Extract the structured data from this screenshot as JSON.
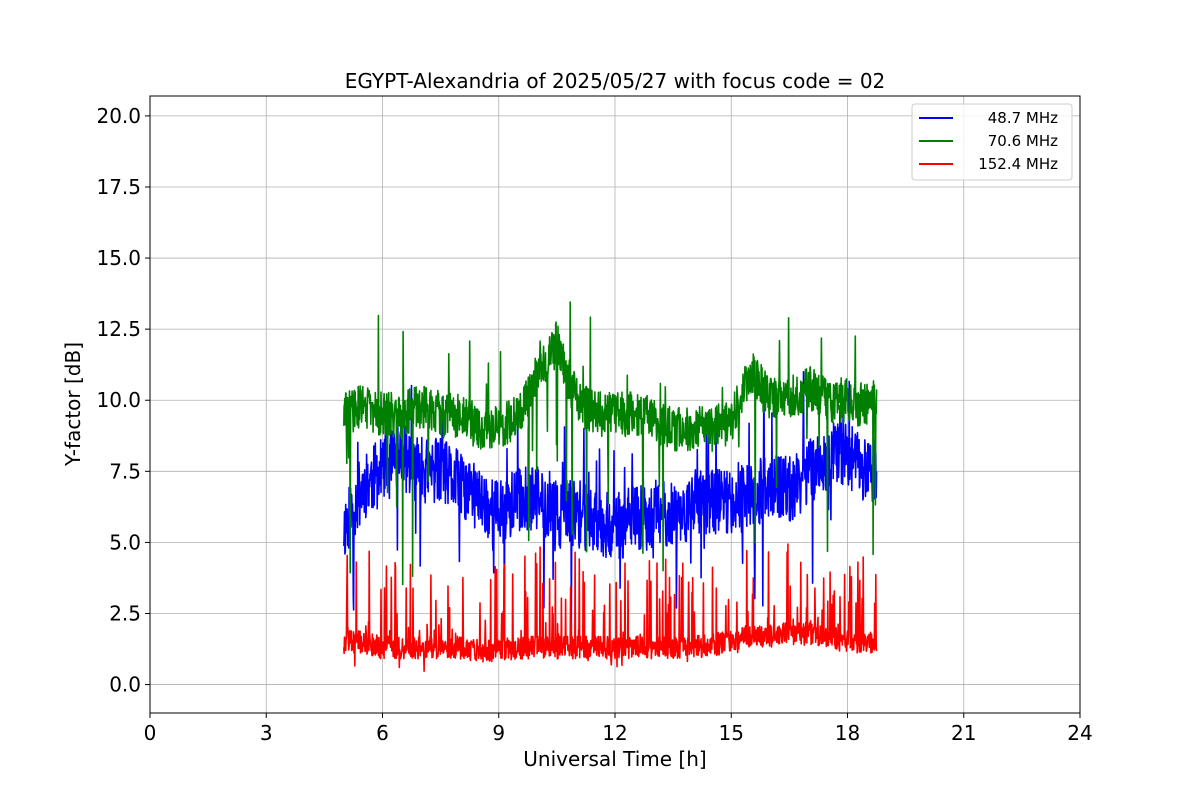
{
  "chart_data": {
    "type": "line",
    "title": "EGYPT-Alexandria of 2025/05/27 with focus code = 02",
    "xlabel": "Universal Time [h]",
    "ylabel": "Y-factor [dB]",
    "xlim": [
      0,
      24
    ],
    "ylim": [
      -1.0,
      20.7
    ],
    "x_ticks": [
      0,
      3,
      6,
      9,
      12,
      15,
      18,
      21,
      24
    ],
    "x_tick_labels": [
      "0",
      "3",
      "6",
      "9",
      "12",
      "15",
      "18",
      "21",
      "24"
    ],
    "y_ticks": [
      0,
      2.5,
      5,
      7.5,
      10,
      12.5,
      15,
      17.5,
      20
    ],
    "y_tick_labels": [
      "0.0",
      "2.5",
      "5.0",
      "7.5",
      "10.0",
      "12.5",
      "15.0",
      "17.5",
      "20.0"
    ],
    "grid": true,
    "legend_position": "top-right",
    "series": [
      {
        "name": "48.7 MHz",
        "color": "#0000ff",
        "x": [
          5.0,
          5.5,
          6.0,
          6.5,
          7.0,
          7.5,
          8.0,
          8.5,
          9.0,
          9.5,
          10.0,
          10.5,
          11.0,
          11.5,
          12.0,
          12.5,
          13.0,
          13.5,
          14.0,
          14.5,
          15.0,
          15.5,
          16.0,
          16.5,
          17.0,
          17.5,
          18.0,
          18.5,
          18.75
        ],
        "y": [
          5.5,
          7.0,
          7.5,
          8.0,
          7.5,
          7.5,
          7.0,
          6.5,
          6.0,
          6.5,
          6.5,
          6.0,
          6.0,
          5.8,
          5.5,
          5.8,
          6.0,
          6.0,
          6.2,
          6.5,
          6.5,
          6.5,
          7.0,
          6.8,
          7.5,
          8.0,
          8.0,
          7.5,
          7.5
        ]
      },
      {
        "name": "70.6 MHz",
        "color": "#008000",
        "x": [
          5.0,
          5.5,
          6.0,
          6.5,
          7.0,
          7.5,
          8.0,
          8.5,
          9.0,
          9.5,
          10.0,
          10.5,
          11.0,
          11.5,
          12.0,
          12.5,
          13.0,
          13.5,
          14.0,
          14.5,
          15.0,
          15.5,
          16.0,
          16.5,
          17.0,
          17.5,
          18.0,
          18.5,
          18.75
        ],
        "y": [
          9.5,
          9.8,
          9.5,
          9.5,
          9.8,
          9.5,
          9.5,
          9.0,
          9.0,
          9.5,
          11.0,
          12.0,
          10.0,
          9.5,
          9.5,
          9.5,
          9.3,
          9.0,
          9.0,
          9.0,
          9.2,
          11.0,
          10.0,
          10.0,
          10.5,
          10.0,
          10.0,
          9.8,
          10.0
        ]
      },
      {
        "name": "152.4 MHz",
        "color": "#ff0000",
        "x": [
          5.0,
          5.5,
          6.0,
          6.5,
          7.0,
          7.5,
          8.0,
          8.5,
          9.0,
          9.5,
          10.0,
          10.5,
          11.0,
          11.5,
          12.0,
          12.5,
          13.0,
          13.5,
          14.0,
          14.5,
          15.0,
          15.5,
          16.0,
          16.5,
          17.0,
          17.5,
          18.0,
          18.5,
          18.75
        ],
        "y": [
          1.5,
          1.5,
          1.3,
          1.3,
          1.3,
          1.3,
          1.3,
          1.2,
          1.2,
          1.3,
          1.3,
          1.3,
          1.3,
          1.3,
          1.3,
          1.3,
          1.3,
          1.3,
          1.3,
          1.4,
          1.5,
          1.7,
          1.7,
          1.8,
          1.8,
          1.7,
          1.5,
          1.5,
          1.5
        ]
      }
    ]
  }
}
